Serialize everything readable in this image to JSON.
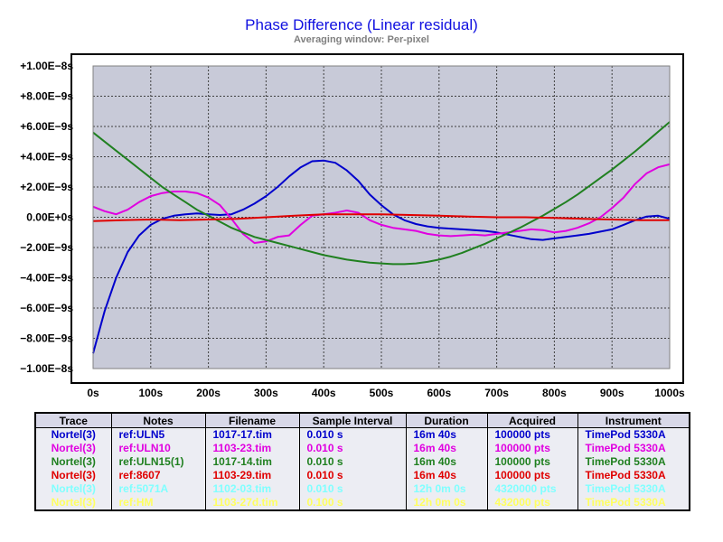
{
  "chart_data": {
    "type": "line",
    "title": "Phase Difference (Linear residual)",
    "subtitle": "Averaging window: Per-pixel",
    "xlabel": "",
    "ylabel": "",
    "xlim": [
      0,
      1000
    ],
    "ylim": [
      -1e-08,
      1e-08
    ],
    "grid": true,
    "x_ticks": [
      "0s",
      "100s",
      "200s",
      "300s",
      "400s",
      "500s",
      "600s",
      "700s",
      "800s",
      "900s",
      "1000s"
    ],
    "y_ticks": [
      "+1.00E−8s",
      "+8.00E−9s",
      "+6.00E−9s",
      "+4.00E−9s",
      "+2.00E−9s",
      "0.00E+0s",
      "−2.00E−9s",
      "−4.00E−9s",
      "−6.00E−9s",
      "−8.00E−9s",
      "−1.00E−8s"
    ],
    "series": [
      {
        "name": "ref:ULN5",
        "color": "#0000cc",
        "x": [
          0,
          20,
          40,
          60,
          80,
          100,
          120,
          140,
          160,
          180,
          200,
          220,
          240,
          260,
          280,
          300,
          320,
          340,
          360,
          380,
          400,
          420,
          440,
          460,
          480,
          500,
          520,
          540,
          560,
          580,
          600,
          620,
          640,
          660,
          680,
          700,
          720,
          740,
          760,
          780,
          800,
          820,
          840,
          860,
          880,
          900,
          920,
          940,
          960,
          980,
          1000
        ],
        "y": [
          -9e-09,
          -6.2e-09,
          -4e-09,
          -2.3e-09,
          -1.2e-09,
          -5e-10,
          -1e-10,
          1e-10,
          2e-10,
          2.5e-10,
          2e-10,
          1.5e-10,
          2e-10,
          5e-10,
          9e-10,
          1.4e-09,
          2e-09,
          2.7e-09,
          3.3e-09,
          3.7e-09,
          3.75e-09,
          3.6e-09,
          3.1e-09,
          2.4e-09,
          1.5e-09,
          8e-10,
          2e-10,
          -2e-10,
          -4.5e-10,
          -6e-10,
          -7e-10,
          -7.5e-10,
          -8e-10,
          -8.5e-10,
          -9e-10,
          -1e-09,
          -1.15e-09,
          -1.3e-09,
          -1.45e-09,
          -1.5e-09,
          -1.4e-09,
          -1.3e-09,
          -1.2e-09,
          -1.1e-09,
          -9.5e-10,
          -8e-10,
          -5e-10,
          -2e-10,
          5e-11,
          1e-10,
          -1e-10
        ]
      },
      {
        "name": "ref:ULN10",
        "color": "#e000e0",
        "x": [
          0,
          20,
          40,
          60,
          80,
          100,
          120,
          140,
          160,
          180,
          200,
          220,
          240,
          260,
          280,
          300,
          320,
          340,
          360,
          380,
          400,
          420,
          440,
          460,
          480,
          500,
          520,
          540,
          560,
          580,
          600,
          620,
          640,
          660,
          680,
          700,
          720,
          740,
          760,
          780,
          800,
          820,
          840,
          860,
          880,
          900,
          920,
          940,
          960,
          980,
          1000
        ],
        "y": [
          7e-10,
          4e-10,
          2e-10,
          5e-10,
          1e-09,
          1.4e-09,
          1.6e-09,
          1.7e-09,
          1.7e-09,
          1.6e-09,
          1.3e-09,
          8e-10,
          -1e-10,
          -1.1e-09,
          -1.7e-09,
          -1.6e-09,
          -1.3e-09,
          -1.2e-09,
          -5e-10,
          1e-10,
          2e-10,
          3e-10,
          4.5e-10,
          3e-10,
          -2e-10,
          -5e-10,
          -7e-10,
          -8e-10,
          -9e-10,
          -1.1e-09,
          -1.2e-09,
          -1.25e-09,
          -1.2e-09,
          -1.15e-09,
          -1.2e-09,
          -1.1e-09,
          -1e-09,
          -9e-10,
          -8e-10,
          -8.5e-10,
          -1e-09,
          -9e-10,
          -7e-10,
          -4e-10,
          0.0,
          6e-10,
          1.3e-09,
          2.2e-09,
          2.9e-09,
          3.3e-09,
          3.5e-09
        ]
      },
      {
        "name": "ref:ULN15(1)",
        "color": "#208020",
        "x": [
          0,
          20,
          40,
          60,
          80,
          100,
          120,
          140,
          160,
          180,
          200,
          220,
          240,
          260,
          280,
          300,
          320,
          340,
          360,
          380,
          400,
          420,
          440,
          460,
          480,
          500,
          520,
          540,
          560,
          580,
          600,
          620,
          640,
          660,
          680,
          700,
          720,
          740,
          760,
          780,
          800,
          820,
          840,
          860,
          880,
          900,
          920,
          940,
          960,
          980,
          1000
        ],
        "y": [
          5.6e-09,
          5e-09,
          4.4e-09,
          3.8e-09,
          3.2e-09,
          2.6e-09,
          2e-09,
          1.5e-09,
          1e-09,
          5e-10,
          1e-10,
          -3e-10,
          -7e-10,
          -1e-09,
          -1.3e-09,
          -1.5e-09,
          -1.7e-09,
          -1.9e-09,
          -2.1e-09,
          -2.3e-09,
          -2.5e-09,
          -2.65e-09,
          -2.8e-09,
          -2.9e-09,
          -3e-09,
          -3.05e-09,
          -3.1e-09,
          -3.1e-09,
          -3.05e-09,
          -2.95e-09,
          -2.8e-09,
          -2.6e-09,
          -2.35e-09,
          -2.05e-09,
          -1.75e-09,
          -1.4e-09,
          -1.05e-09,
          -7e-10,
          -3e-10,
          1e-10,
          5.5e-10,
          1e-09,
          1.5e-09,
          2.05e-09,
          2.6e-09,
          3.15e-09,
          3.75e-09,
          4.35e-09,
          5e-09,
          5.65e-09,
          6.3e-09
        ]
      },
      {
        "name": "ref:8607",
        "color": "#e00000",
        "x": [
          0,
          50,
          100,
          150,
          200,
          250,
          300,
          350,
          400,
          450,
          500,
          550,
          600,
          650,
          700,
          750,
          800,
          850,
          900,
          950,
          1000
        ],
        "y": [
          -2.5e-10,
          -2e-10,
          -1.5e-10,
          -2e-10,
          -1.5e-10,
          -1e-10,
          0.0,
          1e-10,
          2e-10,
          2e-10,
          2e-10,
          1.5e-10,
          1e-10,
          5e-11,
          0.0,
          0.0,
          -5e-11,
          -1e-10,
          -1.5e-10,
          -2e-10,
          -2e-10
        ]
      }
    ]
  },
  "legend": {
    "headers": [
      "Trace",
      "Notes",
      "Filename",
      "Sample Interval",
      "Duration",
      "Acquired",
      "Instrument"
    ],
    "rows": [
      {
        "color": "#0000cc",
        "cells": [
          "Nortel(3)",
          "ref:ULN5",
          "1017-17.tim",
          "0.010 s",
          "16m 40s",
          "100000 pts",
          "TimePod 5330A"
        ]
      },
      {
        "color": "#e000e0",
        "cells": [
          "Nortel(3)",
          "ref:ULN10",
          "1103-23.tim",
          "0.010 s",
          "16m 40s",
          "100000 pts",
          "TimePod 5330A"
        ]
      },
      {
        "color": "#208020",
        "cells": [
          "Nortel(3)",
          "ref:ULN15(1)",
          "1017-14.tim",
          "0.010 s",
          "16m 40s",
          "100000 pts",
          "TimePod 5330A"
        ]
      },
      {
        "color": "#e00000",
        "cells": [
          "Nortel(3)",
          "ref:8607",
          "1103-29.tim",
          "0.010 s",
          "16m 40s",
          "100000 pts",
          "TimePod 5330A"
        ]
      },
      {
        "color": "#80ffff",
        "cells": [
          "Nortel(3)",
          "ref:5071A",
          "1102-03.tim",
          "0.010 s",
          "12h 0m 0s",
          "4320000 pts",
          "TimePod 5330A"
        ]
      },
      {
        "color": "#ffff60",
        "cells": [
          "Nortel(3)",
          "ref:HM",
          "1103-27d.tim",
          "0.100 s",
          "12h 0m 0s",
          "432000 pts",
          "TimePod 5330A"
        ]
      }
    ]
  }
}
